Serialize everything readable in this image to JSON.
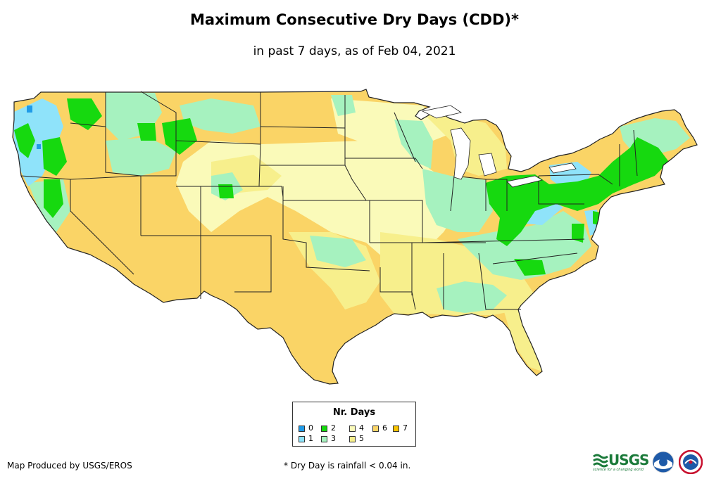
{
  "title": "Maximum Consecutive Dry Days (CDD)*",
  "subtitle": "in past 7 days, as of Feb 04, 2021",
  "legend": {
    "title": "Nr. Days",
    "items": [
      {
        "label": "0",
        "color": "#1f9be8"
      },
      {
        "label": "1",
        "color": "#8fe3fa"
      },
      {
        "label": "2",
        "color": "#16d90f"
      },
      {
        "label": "3",
        "color": "#a6f2bf"
      },
      {
        "label": "4",
        "color": "#fafab9"
      },
      {
        "label": "5",
        "color": "#f7ef8c"
      },
      {
        "label": "6",
        "color": "#fad466"
      },
      {
        "label": "7",
        "color": "#f7c300"
      }
    ]
  },
  "credit": "Map Produced by USGS/EROS",
  "footnote": "* Dry Day is rainfall < 0.04 in.",
  "logos": {
    "usgs": "USGS",
    "usgs_tagline": "science for a changing world"
  }
}
